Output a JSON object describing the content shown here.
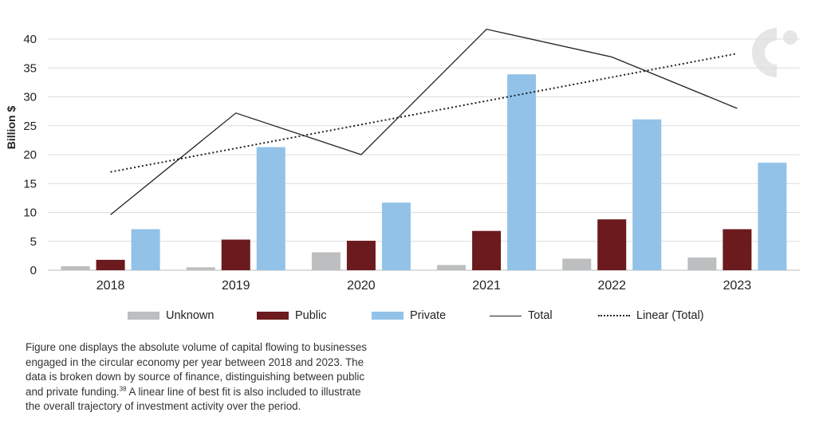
{
  "chart_data": {
    "type": "bar",
    "categories": [
      "2018",
      "2019",
      "2020",
      "2021",
      "2022",
      "2023"
    ],
    "series": [
      {
        "name": "Unknown",
        "kind": "bar",
        "color": "#bcbec0",
        "values": [
          0.7,
          0.5,
          3.1,
          0.9,
          2.0,
          2.2
        ]
      },
      {
        "name": "Public",
        "kind": "bar",
        "color": "#6b1a1e",
        "values": [
          1.8,
          5.3,
          5.1,
          6.8,
          8.8,
          7.1
        ]
      },
      {
        "name": "Private",
        "kind": "bar",
        "color": "#92c2e8",
        "values": [
          7.1,
          21.3,
          11.7,
          33.9,
          26.1,
          18.6
        ]
      },
      {
        "name": "Total",
        "kind": "line",
        "color": "#222222",
        "values": [
          9.6,
          27.2,
          20.0,
          41.7,
          36.9,
          28.0
        ]
      },
      {
        "name": "Linear (Total)",
        "kind": "dotted-line",
        "color": "#222222",
        "values": [
          17.0,
          21.1,
          25.2,
          29.3,
          33.4,
          37.5
        ]
      }
    ],
    "ylabel": "Billion $",
    "xlabel": "",
    "ylim": [
      0,
      40
    ],
    "yticks": [
      0,
      5,
      10,
      15,
      20,
      25,
      30,
      35,
      40
    ],
    "grid": "horizontal",
    "legend_position": "bottom"
  },
  "legend": {
    "unknown": "Unknown",
    "public": "Public",
    "private": "Private",
    "total": "Total",
    "linear": "Linear (Total)"
  },
  "caption": {
    "text": "Figure one displays the absolute volume of capital flowing to businesses engaged in the circular economy per year between 2018 and 2023. The data is broken down by source of finance, distinguishing between public and private funding.",
    "footnote": "38",
    "text2": " A linear line of best fit is also included to illustrate the overall trajectory of investment activity over the period."
  },
  "colors": {
    "logo": "#e6e6e6"
  },
  "logo_icon": "circular-c-logo"
}
